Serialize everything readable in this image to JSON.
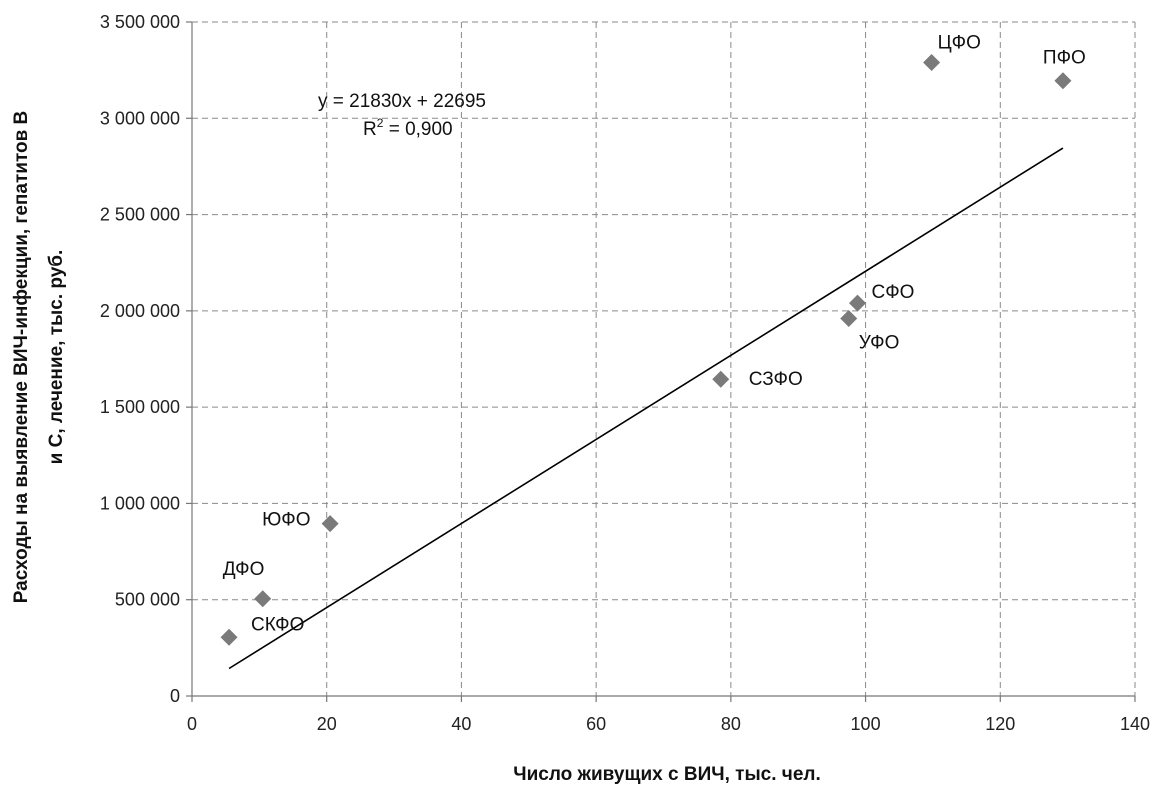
{
  "chart_data": {
    "type": "scatter",
    "xlabel": "Число живущих с ВИЧ, тыс. чел.",
    "ylabel_line1": "Расходы на выявление ВИЧ-инфекции,  гепатитов В",
    "ylabel_line2": "и С, лечение, тыс. руб.",
    "xlim": [
      0,
      140
    ],
    "ylim": [
      0,
      3500000
    ],
    "x_ticks": [
      0,
      20,
      40,
      60,
      80,
      100,
      120,
      140
    ],
    "y_ticks": [
      0,
      500000,
      1000000,
      1500000,
      2000000,
      2500000,
      3000000,
      3500000
    ],
    "x_tick_labels": [
      "0",
      "20",
      "40",
      "60",
      "80",
      "100",
      "120",
      "140"
    ],
    "y_tick_labels": [
      "0",
      "500 000",
      "1 000 000",
      "1 500 000",
      "2 000 000",
      "2 500 000",
      "3 000 000",
      "3 500 000"
    ],
    "grid": true,
    "marker_color": "#7a7a7a",
    "points": [
      {
        "label": "СКФО",
        "x": 5.5,
        "y": 305000
      },
      {
        "label": "ДФО",
        "x": 10.5,
        "y": 505000
      },
      {
        "label": "ЮФО",
        "x": 20.5,
        "y": 895000
      },
      {
        "label": "СЗФО",
        "x": 78.5,
        "y": 1645000
      },
      {
        "label": "УФО",
        "x": 97.5,
        "y": 1960000
      },
      {
        "label": "СФО",
        "x": 98.8,
        "y": 2040000
      },
      {
        "label": "ЦФО",
        "x": 109.8,
        "y": 3290000
      },
      {
        "label": "ПФО",
        "x": 129.3,
        "y": 3195000
      }
    ],
    "trendline": {
      "slope": 21830,
      "intercept": 22695,
      "x_range": [
        5.5,
        129.3
      ],
      "equation": "y = 21830x + 22695",
      "r2_prefix": "R",
      "r2_sup": "2",
      "r2_value": " = 0,900"
    }
  }
}
